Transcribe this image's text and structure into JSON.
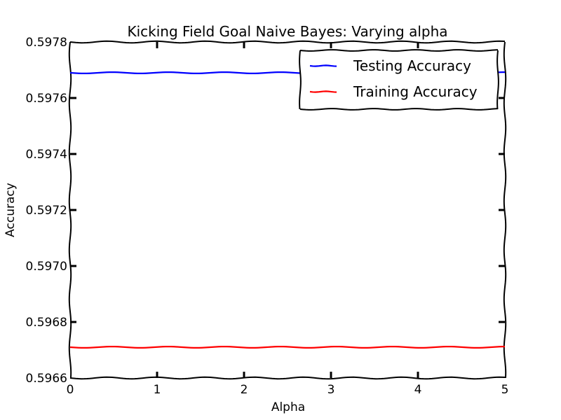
{
  "chart_data": {
    "type": "line",
    "title": "Kicking Field Goal Naive Bayes: Varying alpha",
    "xlabel": "Alpha",
    "ylabel": "Accuracy",
    "xlim": [
      0,
      5
    ],
    "ylim": [
      0.5966,
      0.5978
    ],
    "xticks": [
      "0",
      "1",
      "2",
      "3",
      "4",
      "5"
    ],
    "yticks": [
      "0.5966",
      "0.5968",
      "0.5970",
      "0.5972",
      "0.5974",
      "0.5976",
      "0.5978"
    ],
    "grid": false,
    "legend_position": "top-right",
    "x": [
      0,
      5
    ],
    "series": [
      {
        "name": "Testing Accuracy",
        "color": "#0000ff",
        "values": [
          0.59769,
          0.59769
        ]
      },
      {
        "name": "Training Accuracy",
        "color": "#ff0000",
        "values": [
          0.59671,
          0.59671
        ]
      }
    ]
  }
}
